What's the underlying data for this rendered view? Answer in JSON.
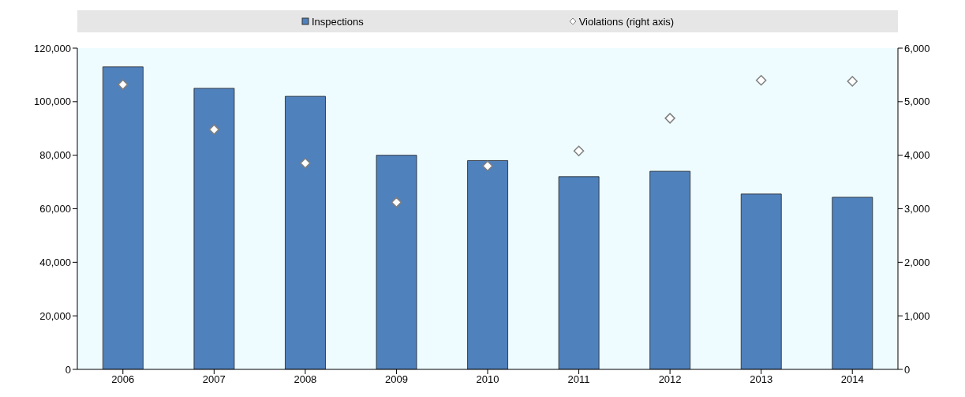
{
  "chart_data": {
    "type": "bar",
    "categories": [
      "2006",
      "2007",
      "2008",
      "2009",
      "2010",
      "2011",
      "2012",
      "2013",
      "2014"
    ],
    "series": [
      {
        "name": "Inspections",
        "color": "#4f81bd",
        "values": [
          113000,
          105000,
          102000,
          80000,
          78000,
          72000,
          74000,
          65500,
          64300
        ]
      },
      {
        "name": "Violations (right axis)",
        "type": "scatter",
        "axis": "y2",
        "marker": "diamond",
        "color": "#ffffff",
        "values": [
          5320,
          4480,
          3850,
          3120,
          3800,
          4080,
          4690,
          5400,
          5380
        ]
      }
    ],
    "ylim": [
      0,
      120000
    ],
    "yticks": [
      0,
      {
        "value": 20000,
        "label": "20,000"
      },
      {
        "value": 40000,
        "label": "40,000"
      },
      {
        "value": 60000,
        "label": "60,000"
      },
      {
        "value": 80000,
        "label": "80,000"
      },
      {
        "value": 100000,
        "label": "100,000"
      },
      {
        "value": 120000,
        "label": "120,000"
      }
    ],
    "y2lim": [
      0,
      6000
    ],
    "y2ticks": [
      0,
      {
        "value": 1000,
        "label": "1,000"
      },
      {
        "value": 2000,
        "label": "2,000"
      },
      {
        "value": 3000,
        "label": "3,000"
      },
      {
        "value": 4000,
        "label": "4,000"
      },
      {
        "value": 5000,
        "label": "5,000"
      },
      {
        "value": 6000,
        "label": "6,000"
      }
    ],
    "legend": "top"
  }
}
